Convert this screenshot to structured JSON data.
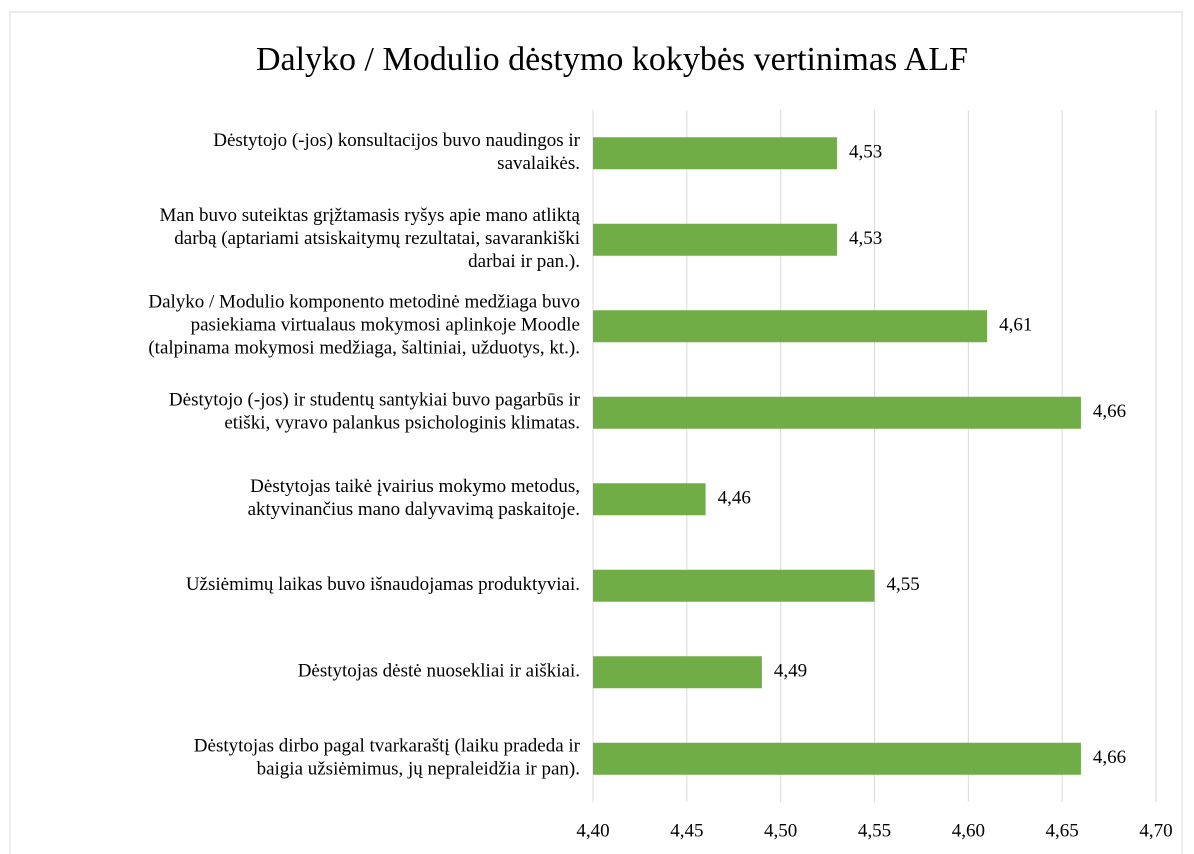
{
  "chart_data": {
    "type": "bar",
    "orientation": "horizontal",
    "title": "Dalyko / Modulio dėstymo kokybės vertinimas ALF",
    "categories": [
      [
        "Dėstytojo (-jos) konsultacijos buvo naudingos ir",
        "savalaikės."
      ],
      [
        "Man buvo suteiktas grįžtamasis ryšys apie mano atliktą",
        "darbą (aptariami atsiskaitymų rezultatai, savarankiški",
        "darbai ir pan.)."
      ],
      [
        "Dalyko / Modulio komponento metodinė medžiaga buvo",
        "pasiekiama virtualaus mokymosi aplinkoje Moodle",
        "(talpinama mokymosi medžiaga, šaltiniai, užduotys, kt.)."
      ],
      [
        "Dėstytojo (-jos) ir studentų santykiai buvo pagarbūs ir",
        "etiški, vyravo palankus psichologinis klimatas."
      ],
      [
        "Dėstytojas taikė įvairius mokymo metodus,",
        "aktyvinančius mano dalyvavimą paskaitoje."
      ],
      [
        "Užsiėmimų laikas buvo išnaudojamas produktyviai."
      ],
      [
        "Dėstytojas dėstė nuosekliai ir aiškiai."
      ],
      [
        "Dėstytojas dirbo pagal tvarkaraštį (laiku pradeda ir",
        "baigia užsiėmimus, jų nepraleidžia ir pan)."
      ]
    ],
    "values": [
      4.53,
      4.53,
      4.61,
      4.66,
      4.46,
      4.55,
      4.49,
      4.66
    ],
    "value_labels": [
      "4,53",
      "4,53",
      "4,61",
      "4,66",
      "4,46",
      "4,55",
      "4,49",
      "4,66"
    ],
    "color": "#70ad47",
    "xlim": [
      4.4,
      4.7
    ],
    "xticks": [
      {
        "value": 4.4,
        "label": "4,40"
      },
      {
        "value": 4.45,
        "label": "4,45"
      },
      {
        "value": 4.5,
        "label": "4,50"
      },
      {
        "value": 4.55,
        "label": "4,55"
      },
      {
        "value": 4.6,
        "label": "4,60"
      },
      {
        "value": 4.65,
        "label": "4,65"
      },
      {
        "value": 4.7,
        "label": "4,70"
      }
    ],
    "grid": true
  }
}
